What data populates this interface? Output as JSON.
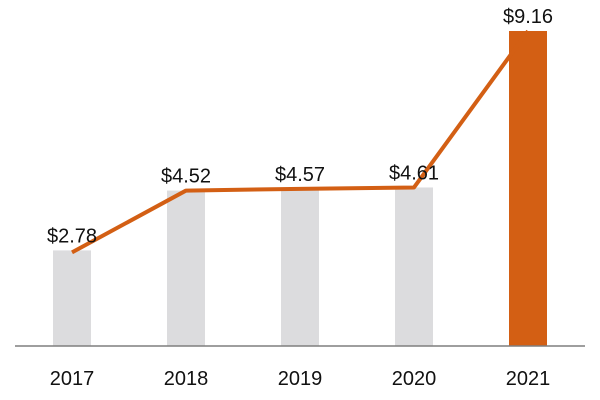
{
  "chart_data": {
    "type": "bar",
    "title": "",
    "xlabel": "",
    "ylabel": "",
    "categories": [
      "2017",
      "2018",
      "2019",
      "2020",
      "2021"
    ],
    "values": [
      2.78,
      4.52,
      4.57,
      4.61,
      9.16
    ],
    "data_labels": [
      "$2.78",
      "$4.52",
      "$4.57",
      "$4.61",
      "$9.16"
    ],
    "overlay_line": true,
    "highlight_category": "2021",
    "ylim": [
      0,
      9.16
    ],
    "grid": false,
    "legend": "none",
    "colors": {
      "bar": "#dcdcde",
      "highlight_bar": "#d35f14",
      "line": "#d35f14",
      "axis": "#7f7f7f",
      "text": "#111111"
    }
  }
}
